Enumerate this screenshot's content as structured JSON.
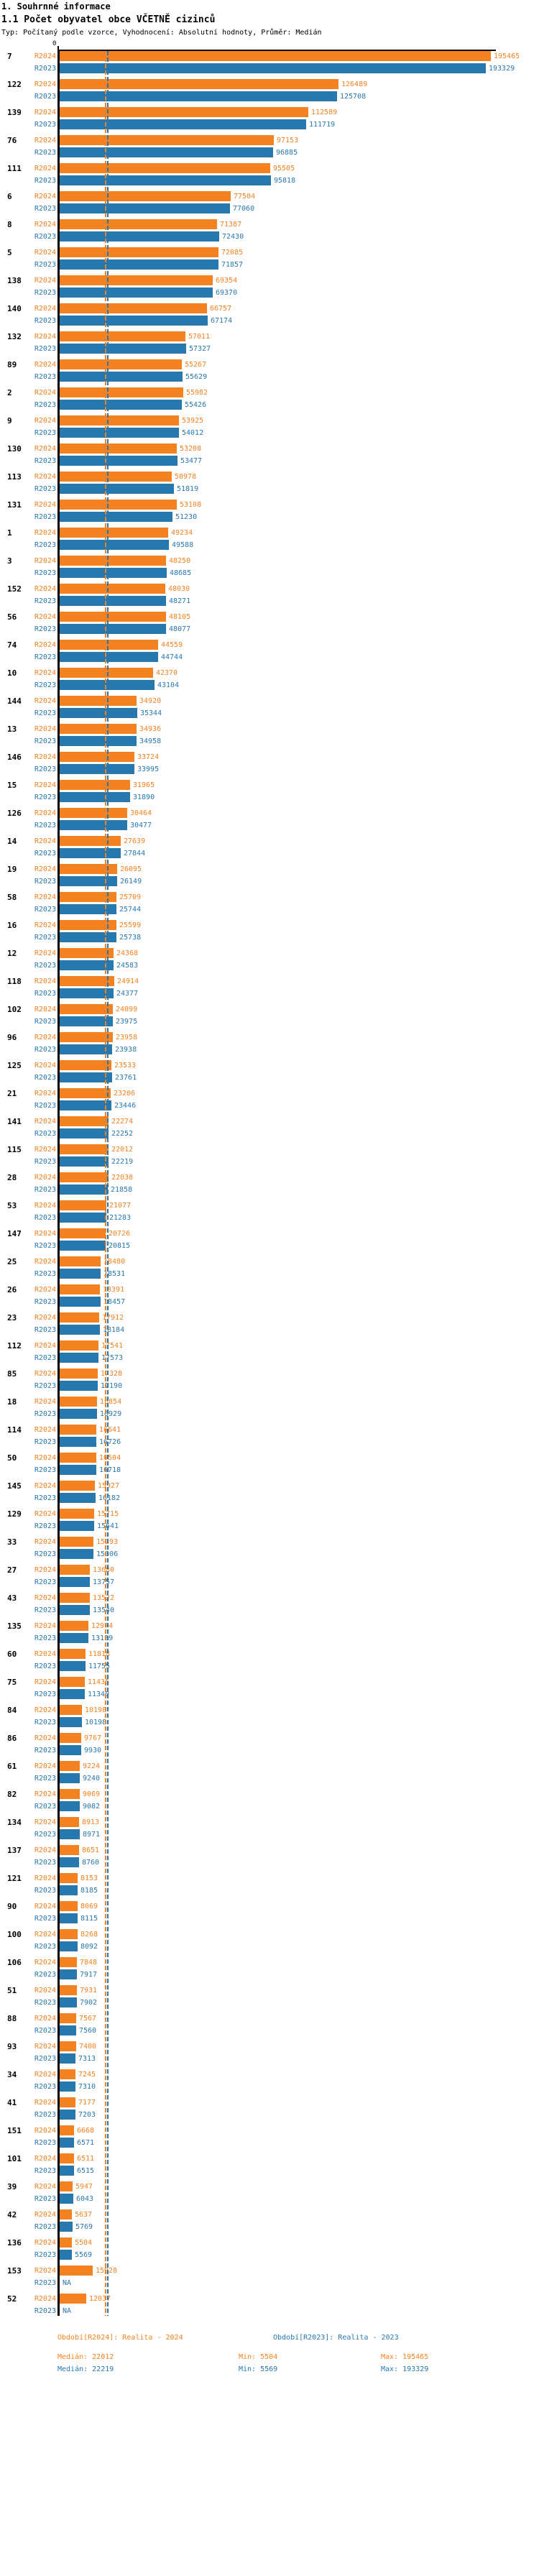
{
  "header": {
    "title": "1. Souhrnné informace",
    "subtitle": "1.1 Počet obyvatel obce VČETNĚ cizinců",
    "meta": "Typ: Počítaný podle vzorce, Vyhodnocení: Absolutní hodnoty, Průměr: Medián"
  },
  "axis": {
    "zero_label": "0"
  },
  "colors": {
    "r2024": "#F58220",
    "r2023": "#2878B0",
    "axis": "#000000"
  },
  "chart_data": {
    "type": "bar",
    "orientation": "horizontal",
    "title": "1.1 Počet obyvatel obce VČETNĚ cizinců",
    "na_label": "NA",
    "x_max_value": 195465,
    "axis_zero_label": "0",
    "median_lines": {
      "R2024": 22012,
      "R2023": 22219
    },
    "series_names": [
      "R2024",
      "R2023"
    ],
    "categories": [
      "7",
      "122",
      "139",
      "76",
      "111",
      "6",
      "8",
      "5",
      "138",
      "140",
      "132",
      "89",
      "2",
      "9",
      "130",
      "113",
      "131",
      "1",
      "3",
      "152",
      "56",
      "74",
      "10",
      "144",
      "13",
      "146",
      "15",
      "126",
      "14",
      "19",
      "58",
      "16",
      "12",
      "118",
      "102",
      "96",
      "125",
      "21",
      "141",
      "115",
      "28",
      "53",
      "147",
      "25",
      "26",
      "23",
      "112",
      "85",
      "18",
      "114",
      "50",
      "145",
      "129",
      "33",
      "27",
      "43",
      "135",
      "60",
      "75",
      "84",
      "86",
      "61",
      "82",
      "134",
      "137",
      "121",
      "90",
      "100",
      "106",
      "51",
      "88",
      "93",
      "34",
      "41",
      "151",
      "101",
      "39",
      "42",
      "136",
      "153",
      "52"
    ],
    "series": [
      {
        "name": "R2024",
        "values": [
          195465,
          126489,
          112589,
          97153,
          95505,
          77504,
          71387,
          72085,
          69354,
          66757,
          57011,
          55267,
          55982,
          53925,
          53208,
          50978,
          53108,
          49234,
          48250,
          48030,
          48105,
          44559,
          42370,
          34920,
          34936,
          33724,
          31965,
          30464,
          27639,
          26095,
          25709,
          25599,
          24368,
          24914,
          24099,
          23958,
          23533,
          23206,
          22274,
          22012,
          22038,
          21077,
          20726,
          18480,
          18391,
          17912,
          17541,
          17328,
          16854,
          16641,
          16504,
          15927,
          15715,
          15293,
          13680,
          13522,
          12974,
          11818,
          11435,
          10198,
          9767,
          9224,
          9069,
          8913,
          8651,
          8153,
          8069,
          8268,
          7848,
          7931,
          7567,
          7400,
          7245,
          7177,
          6668,
          6511,
          5947,
          5637,
          5504,
          15028,
          12037
        ]
      },
      {
        "name": "R2023",
        "values": [
          193329,
          125708,
          111719,
          96885,
          95818,
          77060,
          72430,
          71857,
          69370,
          67174,
          57327,
          55629,
          55426,
          54012,
          53477,
          51819,
          51230,
          49588,
          48685,
          48271,
          48077,
          44744,
          43104,
          35344,
          34958,
          33995,
          31890,
          30477,
          27844,
          26149,
          25744,
          25738,
          24583,
          24377,
          23975,
          23938,
          23761,
          23446,
          22252,
          22219,
          21858,
          21283,
          20815,
          18531,
          18457,
          18184,
          17573,
          17190,
          16929,
          16726,
          16718,
          16182,
          15641,
          15306,
          13757,
          13540,
          13139,
          11755,
          11340,
          10198,
          9930,
          9240,
          9082,
          8971,
          8760,
          8185,
          8115,
          8092,
          7917,
          7902,
          7560,
          7313,
          7310,
          7203,
          6571,
          6515,
          6043,
          5769,
          5569,
          null,
          null
        ]
      }
    ]
  },
  "footer": {
    "period_r2024": "Období[R2024]: Realita - 2024",
    "period_r2023": "Období[R2023]: Realita - 2023",
    "r2024": {
      "median": "Medián: 22012",
      "min": "Min: 5504",
      "max": "Max: 195465"
    },
    "r2023": {
      "median": "Medián: 22219",
      "min": "Min: 5569",
      "max": "Max: 193329"
    }
  }
}
